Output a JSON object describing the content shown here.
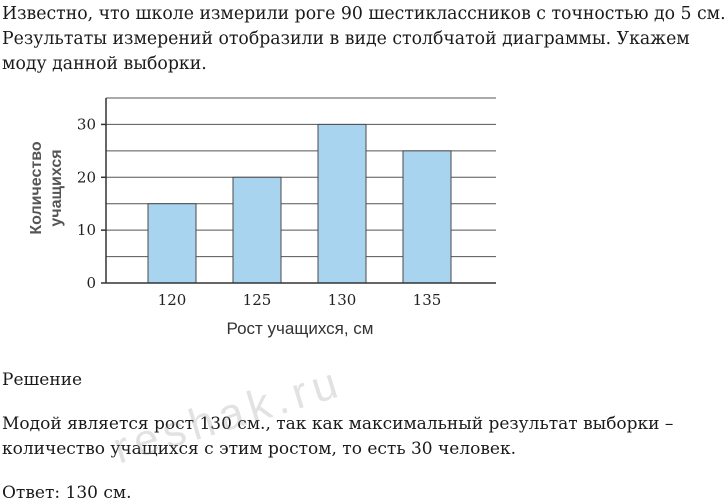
{
  "problem": {
    "lines": [
      "Известно, что школе измерили роге 90 шестиклассников с точностью до 5 см.",
      "Результаты измерений отобразили в виде столбчатой диаграммы. Укажем",
      "моду данной выборки."
    ]
  },
  "chart_data": {
    "type": "bar",
    "categories": [
      "120",
      "125",
      "130",
      "135"
    ],
    "values": [
      15,
      20,
      30,
      25
    ],
    "title": "",
    "xlabel": "Рост учащихся, см",
    "ylabel": "Количество учащихся",
    "ylabel_lines": [
      "Количество",
      "учащихся"
    ],
    "ylim": [
      0,
      35
    ],
    "yticks": [
      0,
      10,
      20,
      30
    ],
    "grid": true,
    "bar_color": "#a9d4f0",
    "bar_edge_color": "#4a4a4a"
  },
  "solution": {
    "title": "Решение",
    "lines": [
      "Модой является рост 130 см., так как максимальный результат выборки –",
      "количество учащихся с этим ростом, то есть 30 человек."
    ],
    "answer": "Ответ: 130 см."
  },
  "watermark": "reshak.ru"
}
